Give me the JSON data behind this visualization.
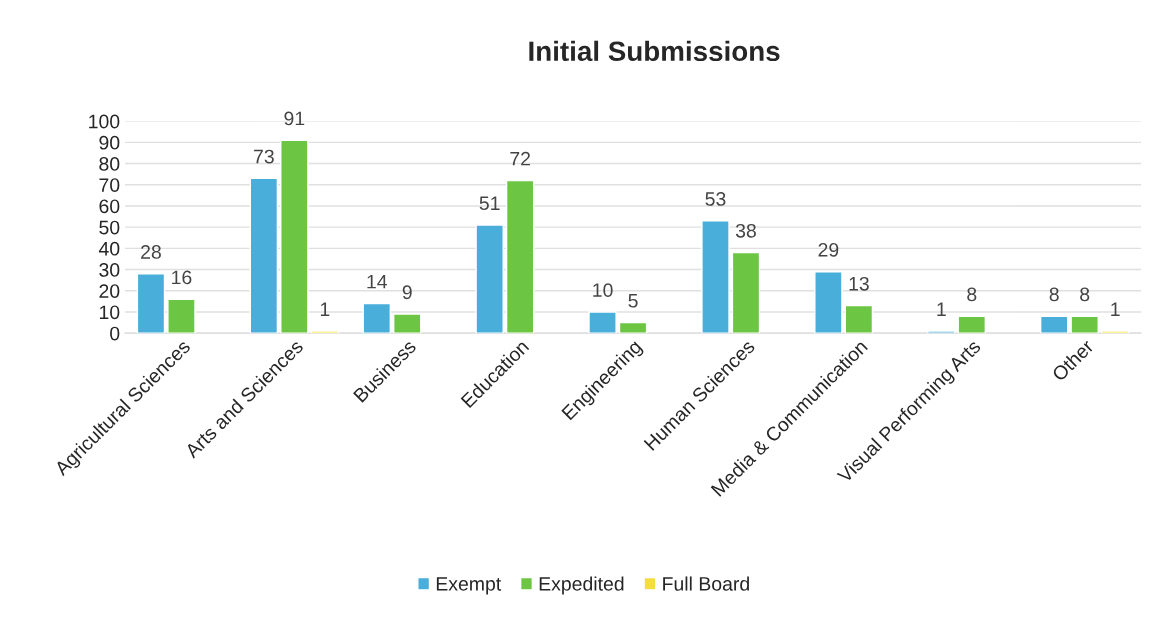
{
  "chart_data": {
    "type": "bar",
    "title": "Initial Submissions",
    "categories": [
      "Agricultural Sciences",
      "Arts and Sciences",
      "Business",
      "Education",
      "Engineering",
      "Human Sciences",
      "Media & Communication",
      "Visual Performing Arts",
      "Other"
    ],
    "series": [
      {
        "name": "Exempt",
        "color": "#4aaedb",
        "values": [
          28,
          73,
          14,
          51,
          10,
          53,
          29,
          1,
          8
        ]
      },
      {
        "name": "Expedited",
        "color": "#6cc644",
        "values": [
          16,
          91,
          9,
          72,
          5,
          38,
          13,
          8,
          8
        ]
      },
      {
        "name": "Full Board",
        "color": "#f5de3a",
        "values": [
          null,
          1,
          null,
          null,
          null,
          null,
          null,
          null,
          1
        ]
      }
    ],
    "ylim": [
      0,
      100
    ],
    "yticks": [
      0,
      10,
      20,
      30,
      40,
      50,
      60,
      70,
      80,
      90,
      100
    ],
    "grid": "y",
    "legend": "bottom",
    "data_labels": true
  }
}
